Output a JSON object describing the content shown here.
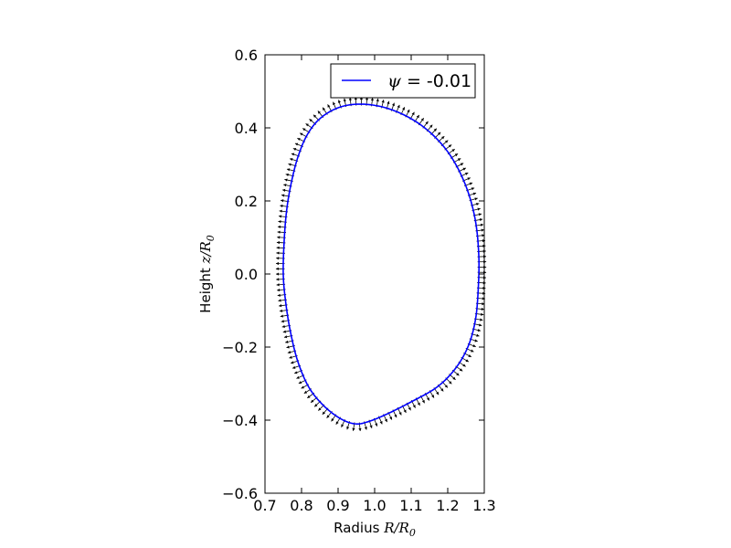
{
  "chart_data": {
    "type": "line",
    "xlabel": {
      "text": "Radius ",
      "math": "R/R",
      "sub": "0"
    },
    "ylabel": {
      "text": "Height ",
      "math": "z/R",
      "sub": "0"
    },
    "xlim": [
      0.7,
      1.3
    ],
    "ylim": [
      -0.6,
      0.6
    ],
    "xticks": [
      "0.7",
      "0.8",
      "0.9",
      "1.0",
      "1.1",
      "1.2",
      "1.3"
    ],
    "yticks": [
      "−0.6",
      "−0.4",
      "−0.2",
      "0.0",
      "0.2",
      "0.4",
      "0.6"
    ],
    "grid": false,
    "legend": {
      "placement": "top-right",
      "symbol": "ψ",
      "eq": " = ",
      "value": "-0.01"
    },
    "series": [
      {
        "name": "ψ = -0.01",
        "color": "#0000ff",
        "points": [
          [
            0.75,
            0.0
          ],
          [
            0.753,
            0.1
          ],
          [
            0.76,
            0.18
          ],
          [
            0.772,
            0.25
          ],
          [
            0.79,
            0.32
          ],
          [
            0.815,
            0.38
          ],
          [
            0.85,
            0.425
          ],
          [
            0.9,
            0.455
          ],
          [
            0.96,
            0.465
          ],
          [
            1.03,
            0.455
          ],
          [
            1.1,
            0.425
          ],
          [
            1.16,
            0.38
          ],
          [
            1.21,
            0.32
          ],
          [
            1.25,
            0.24
          ],
          [
            1.275,
            0.15
          ],
          [
            1.285,
            0.05
          ],
          [
            1.283,
            -0.05
          ],
          [
            1.275,
            -0.13
          ],
          [
            1.255,
            -0.2
          ],
          [
            1.22,
            -0.26
          ],
          [
            1.17,
            -0.31
          ],
          [
            1.1,
            -0.35
          ],
          [
            1.03,
            -0.385
          ],
          [
            0.98,
            -0.405
          ],
          [
            0.945,
            -0.41
          ],
          [
            0.905,
            -0.395
          ],
          [
            0.86,
            -0.36
          ],
          [
            0.82,
            -0.31
          ],
          [
            0.79,
            -0.24
          ],
          [
            0.77,
            -0.16
          ],
          [
            0.757,
            -0.08
          ]
        ]
      }
    ],
    "arrows": {
      "color": "#000000",
      "count": 160
    }
  }
}
